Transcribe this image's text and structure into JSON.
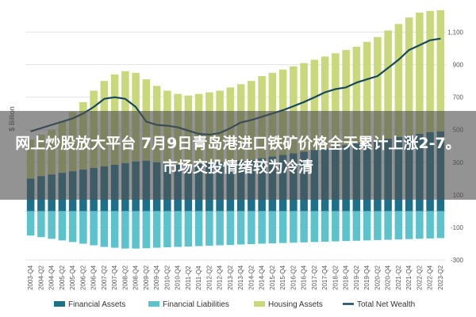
{
  "chart_data": {
    "type": "bar",
    "title": "",
    "ylabel": "$ Billion",
    "ylim": [
      -300,
      1200
    ],
    "yticks": [
      -300,
      -100,
      100,
      300,
      500,
      700,
      900,
      1100
    ],
    "ytick_labels": [
      "-300",
      "-100",
      "100",
      "300",
      "500",
      "700",
      "900",
      "1,100"
    ],
    "categories": [
      "2003-Q4",
      "2004-Q2",
      "2004-Q4",
      "2005-Q2",
      "2005-Q4",
      "2006-Q2",
      "2006-Q4",
      "2007-Q2",
      "2007-Q4",
      "2008-Q2",
      "2008-Q4",
      "2009-Q2",
      "2009-Q4",
      "2010-Q2",
      "2010-Q4",
      "2011-Q2",
      "2011-Q4",
      "2012-Q2",
      "2012-Q4",
      "2013-Q2",
      "2013-Q4",
      "2014-Q2",
      "2014-Q4",
      "2015-Q2",
      "2015-Q4",
      "2016-Q2",
      "2016-Q4",
      "2017-Q2",
      "2017-Q4",
      "2018-Q2",
      "2018-Q4",
      "2019-Q2",
      "2019-Q4",
      "2020-Q2",
      "2020-Q4",
      "2021-Q2",
      "2021-Q4",
      "2022-Q2",
      "2022-Q4",
      "2023-Q2"
    ],
    "series": [
      {
        "name": "Financial Assets",
        "color": "#1e6f8a",
        "values": [
          200,
          215,
          225,
          235,
          245,
          255,
          265,
          275,
          285,
          295,
          305,
          310,
          300,
          290,
          285,
          285,
          290,
          295,
          300,
          305,
          310,
          315,
          325,
          335,
          345,
          355,
          365,
          375,
          385,
          395,
          405,
          415,
          425,
          435,
          445,
          455,
          465,
          475,
          485,
          490
        ]
      },
      {
        "name": "Financial Liabilities",
        "color": "#5cc3cc",
        "values": [
          -150,
          -160,
          -170,
          -180,
          -190,
          -200,
          -210,
          -220,
          -225,
          -230,
          -230,
          -228,
          -225,
          -222,
          -220,
          -218,
          -215,
          -213,
          -210,
          -208,
          -205,
          -203,
          -200,
          -198,
          -196,
          -194,
          -192,
          -190,
          -188,
          -186,
          -184,
          -182,
          -180,
          -178,
          -176,
          -174,
          -172,
          -170,
          -168,
          -166
        ]
      },
      {
        "name": "Housing Assets",
        "color": "#c8d87a",
        "values": [
          440,
          470,
          500,
          550,
          610,
          670,
          740,
          800,
          840,
          860,
          850,
          810,
          770,
          740,
          720,
          710,
          720,
          730,
          740,
          760,
          780,
          800,
          830,
          850,
          870,
          890,
          910,
          930,
          950,
          970,
          990,
          1010,
          1040,
          1070,
          1110,
          1150,
          1190,
          1220,
          1230,
          1235
        ]
      },
      {
        "name": "Total Net Wealth",
        "color": "#17485e",
        "values": [
          490,
          510,
          530,
          550,
          570,
          600,
          640,
          690,
          700,
          690,
          640,
          550,
          530,
          525,
          515,
          495,
          475,
          470,
          480,
          510,
          545,
          560,
          580,
          600,
          620,
          645,
          670,
          700,
          730,
          750,
          760,
          790,
          810,
          830,
          880,
          930,
          990,
          1020,
          1050,
          1060
        ]
      }
    ],
    "legend": "bottom",
    "grid": true
  },
  "overlay": {
    "text": "网上炒股放大平台 7月9日青岛港进口铁矿价格全天累计上涨2-7。市场交投情绪较为冷清"
  }
}
